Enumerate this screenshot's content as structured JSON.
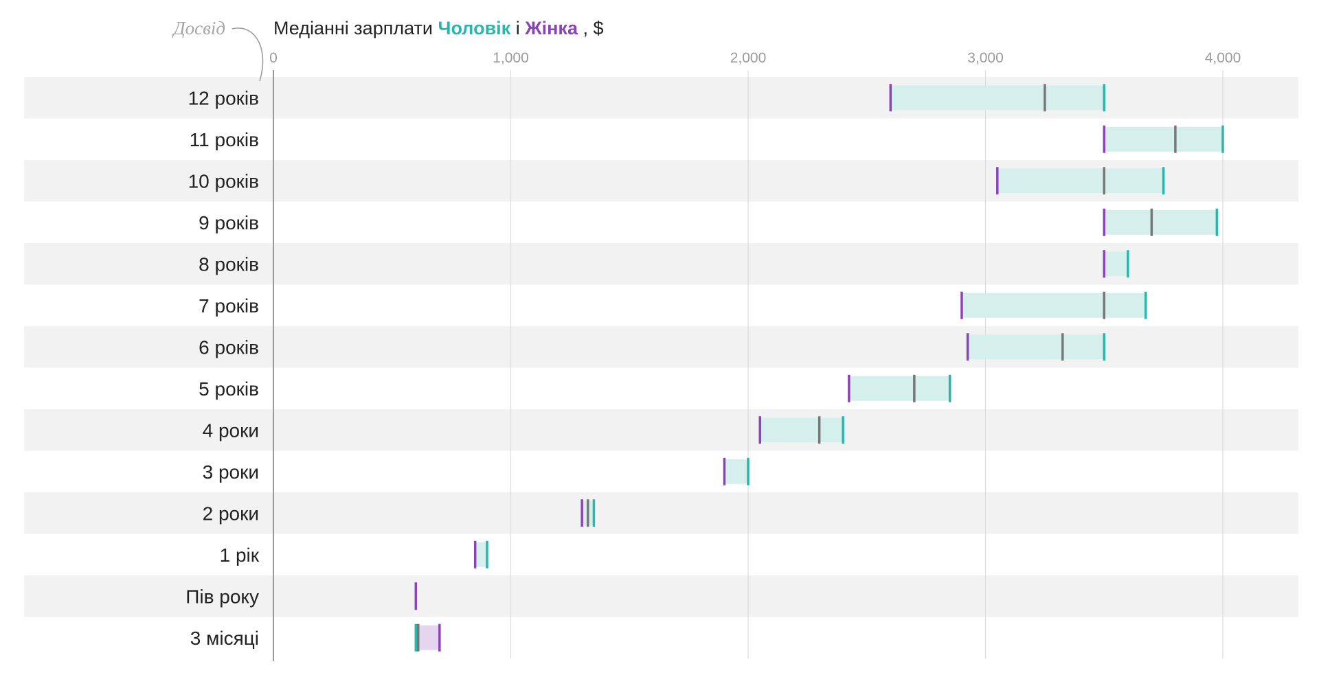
{
  "chart_data": {
    "type": "range-bar",
    "title": {
      "prefix": "Медіанні зарплати",
      "male_label": "Чоловік",
      "joiner": "і",
      "female_label": "Жінка",
      "suffix": ", $"
    },
    "ylabel": "Досвід",
    "xlim": [
      0,
      4250
    ],
    "xticks": [
      0,
      1000,
      2000,
      3000,
      4000
    ],
    "xtick_labels": [
      "0",
      "1,000",
      "2,000",
      "3,000",
      "4,000"
    ],
    "grid": true,
    "colors": {
      "male": "#2db5ad",
      "female": "#8b44b8",
      "overall": "#777777",
      "range_male_higher": "#d5efec",
      "range_female_higher": "#e6d5ef",
      "stripe": "#f2f2f2",
      "grid": "#dcdcdc",
      "axis": "#999999"
    },
    "categories": [
      "12 років",
      "11 років",
      "10 років",
      "9 років",
      "8 років",
      "7 років",
      "6 років",
      "5 років",
      "4 роки",
      "3 роки",
      "2 роки",
      "1 рік",
      "Пів року",
      "3 місяці"
    ],
    "series": [
      {
        "name": "Чоловік",
        "values": [
          3500,
          4000,
          3750,
          3975,
          3600,
          3675,
          3500,
          2850,
          2400,
          2000,
          1350,
          900,
          600,
          600
        ]
      },
      {
        "name": "Жінка",
        "values": [
          2600,
          3500,
          3050,
          3500,
          3500,
          2900,
          2925,
          2425,
          2050,
          1900,
          1300,
          850,
          600,
          700
        ]
      },
      {
        "values": [
          3250,
          3800,
          3500,
          3700,
          3500,
          3500,
          3325,
          2700,
          2300,
          null,
          1325,
          null,
          null,
          610
        ]
      }
    ]
  }
}
